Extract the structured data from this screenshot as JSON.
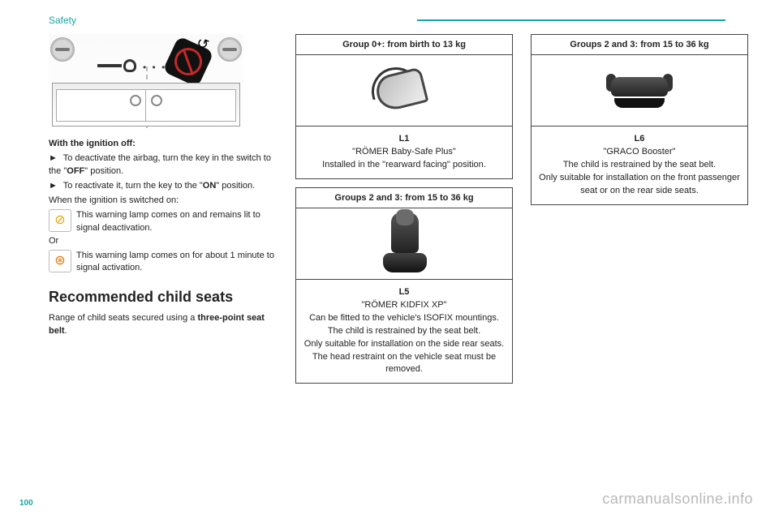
{
  "header": {
    "title": "Safety"
  },
  "page_number": "100",
  "watermark": "carmanualsonline.info",
  "col1": {
    "ignition_off_label": "With the ignition off:",
    "bullet_glyph": "►",
    "deact_pre": "To deactivate the airbag, turn the key in the switch to the \"",
    "off_word": "OFF",
    "deact_post": "\" position.",
    "react_pre": "To reactivate it, turn the key to the \"",
    "on_word": "ON",
    "react_post": "\" position.",
    "when_on": "When the ignition is switched on:",
    "lamp1": "This warning lamp comes on and remains lit to signal deactivation.",
    "or": "Or",
    "lamp2": "This warning lamp comes on for about 1 minute to signal activation.",
    "section_heading": "Recommended child seats",
    "range_pre": "Range of child seats secured using a ",
    "range_bold": "three-point seat belt",
    "range_post": "."
  },
  "cards": {
    "c1": {
      "title": "Group 0+: from birth to 13 kg",
      "code": "L1",
      "name": "\"RÖMER Baby-Safe Plus\"",
      "line1": "Installed in the \"rearward facing\" position."
    },
    "c2": {
      "title": "Groups 2 and 3: from 15 to 36 kg",
      "code": "L5",
      "name": "\"RÖMER KIDFIX XP\"",
      "line1": "Can be fitted to the vehicle's ISOFIX mountings.",
      "line2": "The child is restrained by the seat belt.",
      "line3": "Only suitable for installation on the side rear seats.",
      "line4": "The head restraint on the vehicle seat must be removed."
    },
    "c3": {
      "title": "Groups 2 and 3: from 15 to 36 kg",
      "code": "L6",
      "name": "\"GRACO Booster\"",
      "line1": "The child is restrained by the seat belt.",
      "line2": "Only suitable for installation on the front passenger seat or on the rear side seats."
    }
  }
}
